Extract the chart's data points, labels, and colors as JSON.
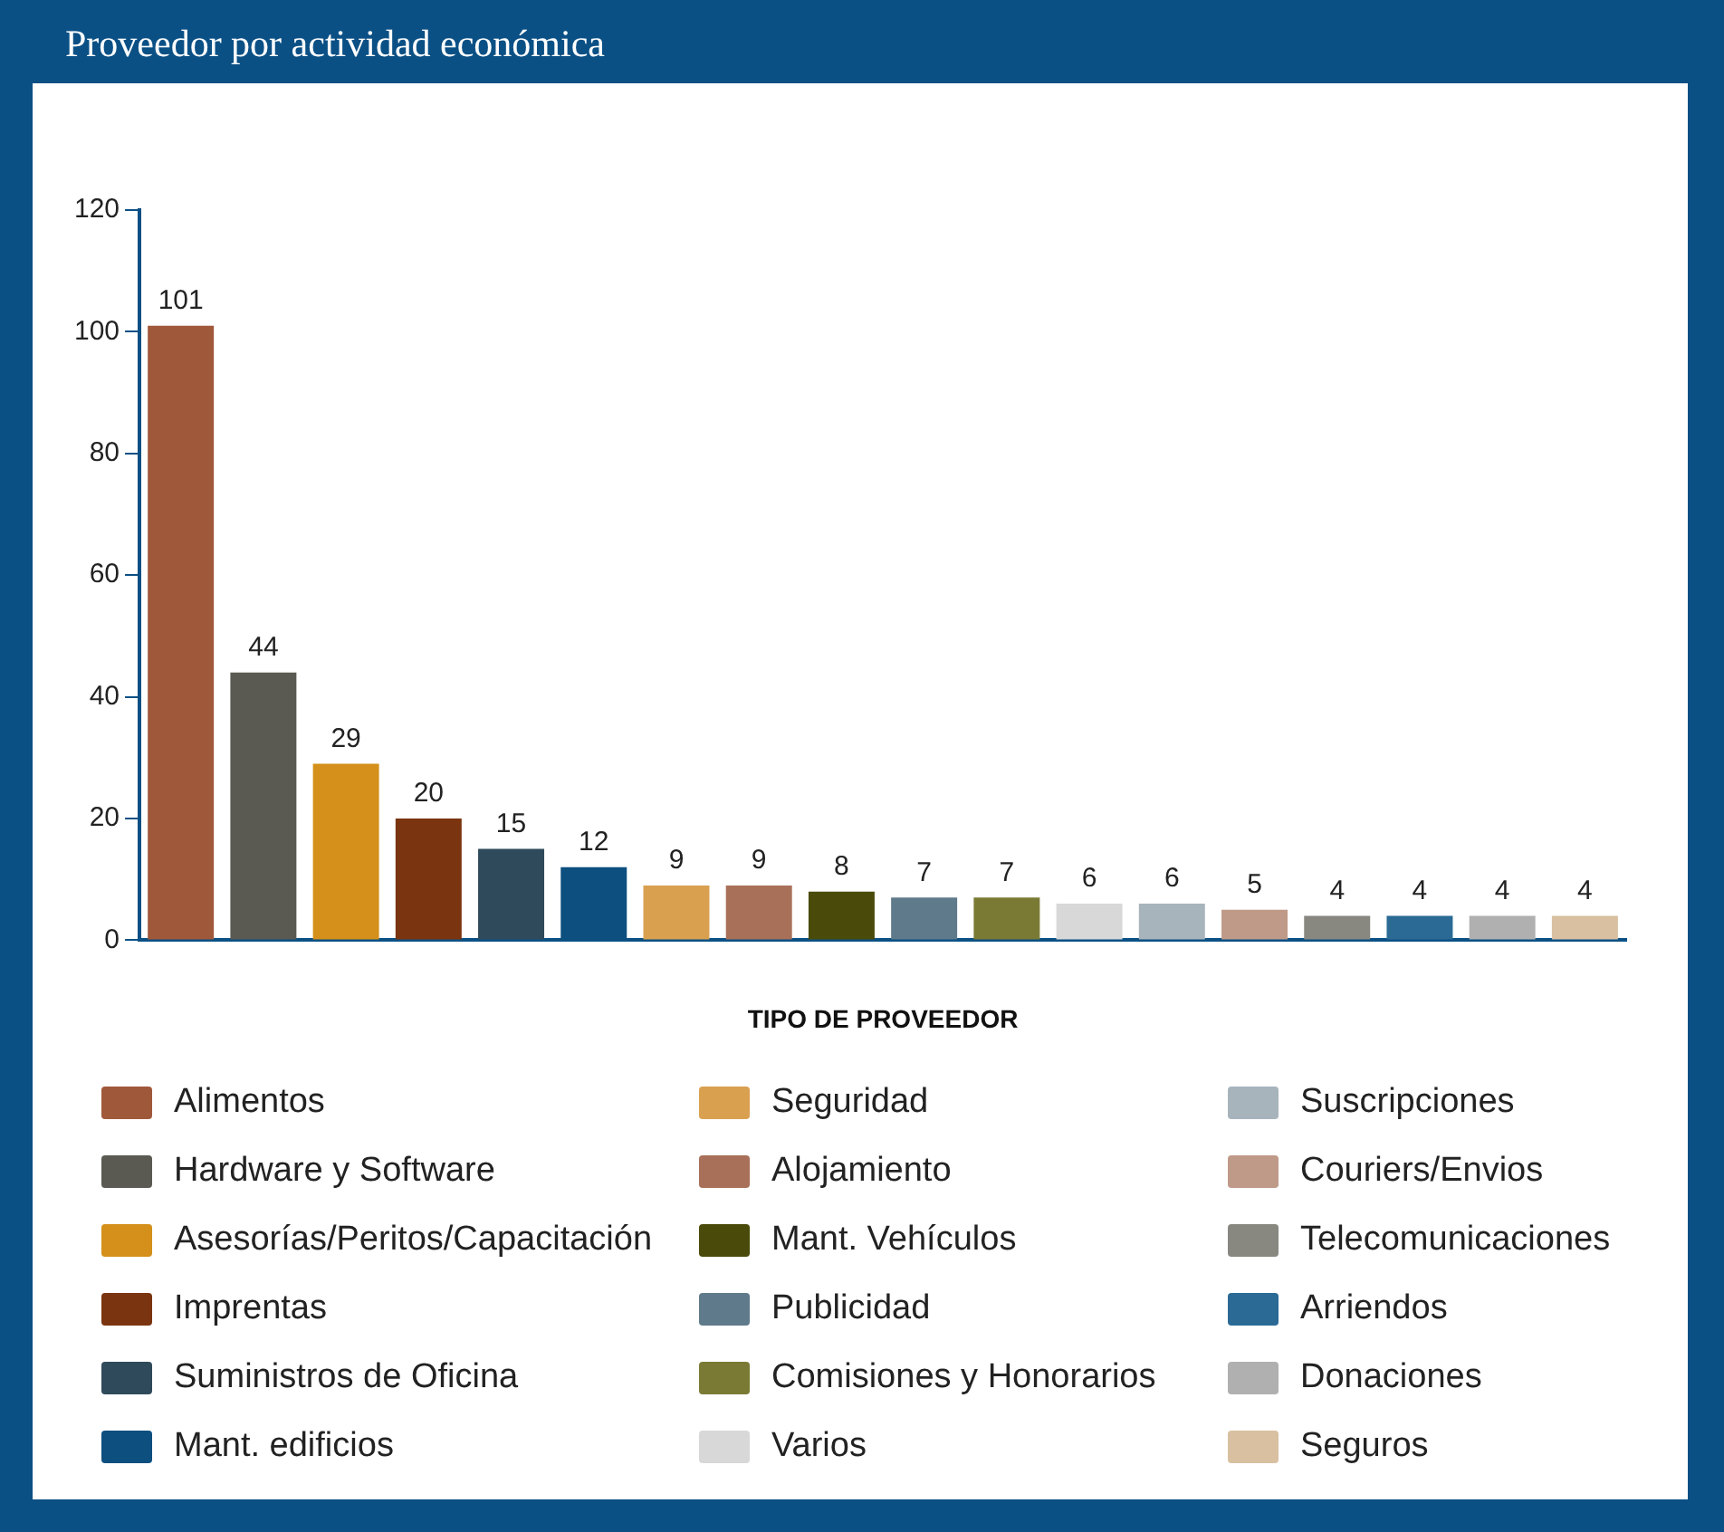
{
  "chart_data": {
    "type": "bar",
    "title": "Proveedor por actividad económica",
    "xlabel": "TIPO DE PROVEEDOR",
    "categories": [
      null
    ],
    "series": [
      {
        "name": "Alimentos",
        "color": "#a0583a",
        "values": [
          101
        ]
      },
      {
        "name": "Hardware y Software",
        "color": "#5a5a52",
        "values": [
          44
        ]
      },
      {
        "name": "Asesorías/Peritos/Capacitación",
        "color": "#d4901a",
        "values": [
          29
        ]
      },
      {
        "name": "Imprentas",
        "color": "#7a3510",
        "values": [
          20
        ]
      },
      {
        "name": "Suministros de Oficina",
        "color": "#2f4a5a",
        "values": [
          15
        ]
      },
      {
        "name": "Mant. edificios",
        "color": "#0d4f7f",
        "values": [
          12
        ]
      },
      {
        "name": "Seguridad",
        "color": "#d9a050",
        "values": [
          9
        ]
      },
      {
        "name": "Alojamiento",
        "color": "#a87058",
        "values": [
          9
        ]
      },
      {
        "name": "Mant. Vehículos",
        "color": "#4a4a0a",
        "values": [
          8
        ]
      },
      {
        "name": "Publicidad",
        "color": "#5f7a8a",
        "values": [
          7
        ]
      },
      {
        "name": "Comisiones y Honorarios",
        "color": "#7a7a35",
        "values": [
          7
        ]
      },
      {
        "name": "Varios",
        "color": "#d8d8d8",
        "values": [
          6
        ]
      },
      {
        "name": "Suscripciones",
        "color": "#a8b4bc",
        "values": [
          6
        ]
      },
      {
        "name": "Couriers/Envios",
        "color": "#c09a88",
        "values": [
          5
        ]
      },
      {
        "name": "Telecomunicaciones",
        "color": "#888880",
        "values": [
          4
        ]
      },
      {
        "name": "Arriendos",
        "color": "#2a6a95",
        "values": [
          4
        ]
      },
      {
        "name": "Donaciones",
        "color": "#b0b0b0",
        "values": [
          4
        ]
      },
      {
        "name": "Seguros",
        "color": "#d8c0a0",
        "values": [
          4
        ]
      }
    ],
    "ylim": [
      0,
      120
    ],
    "yticks": [
      0,
      20,
      40,
      60,
      80,
      100,
      120
    ],
    "grid": false,
    "legend": "bottom",
    "tick_labels": "y",
    "data_labels": true
  }
}
